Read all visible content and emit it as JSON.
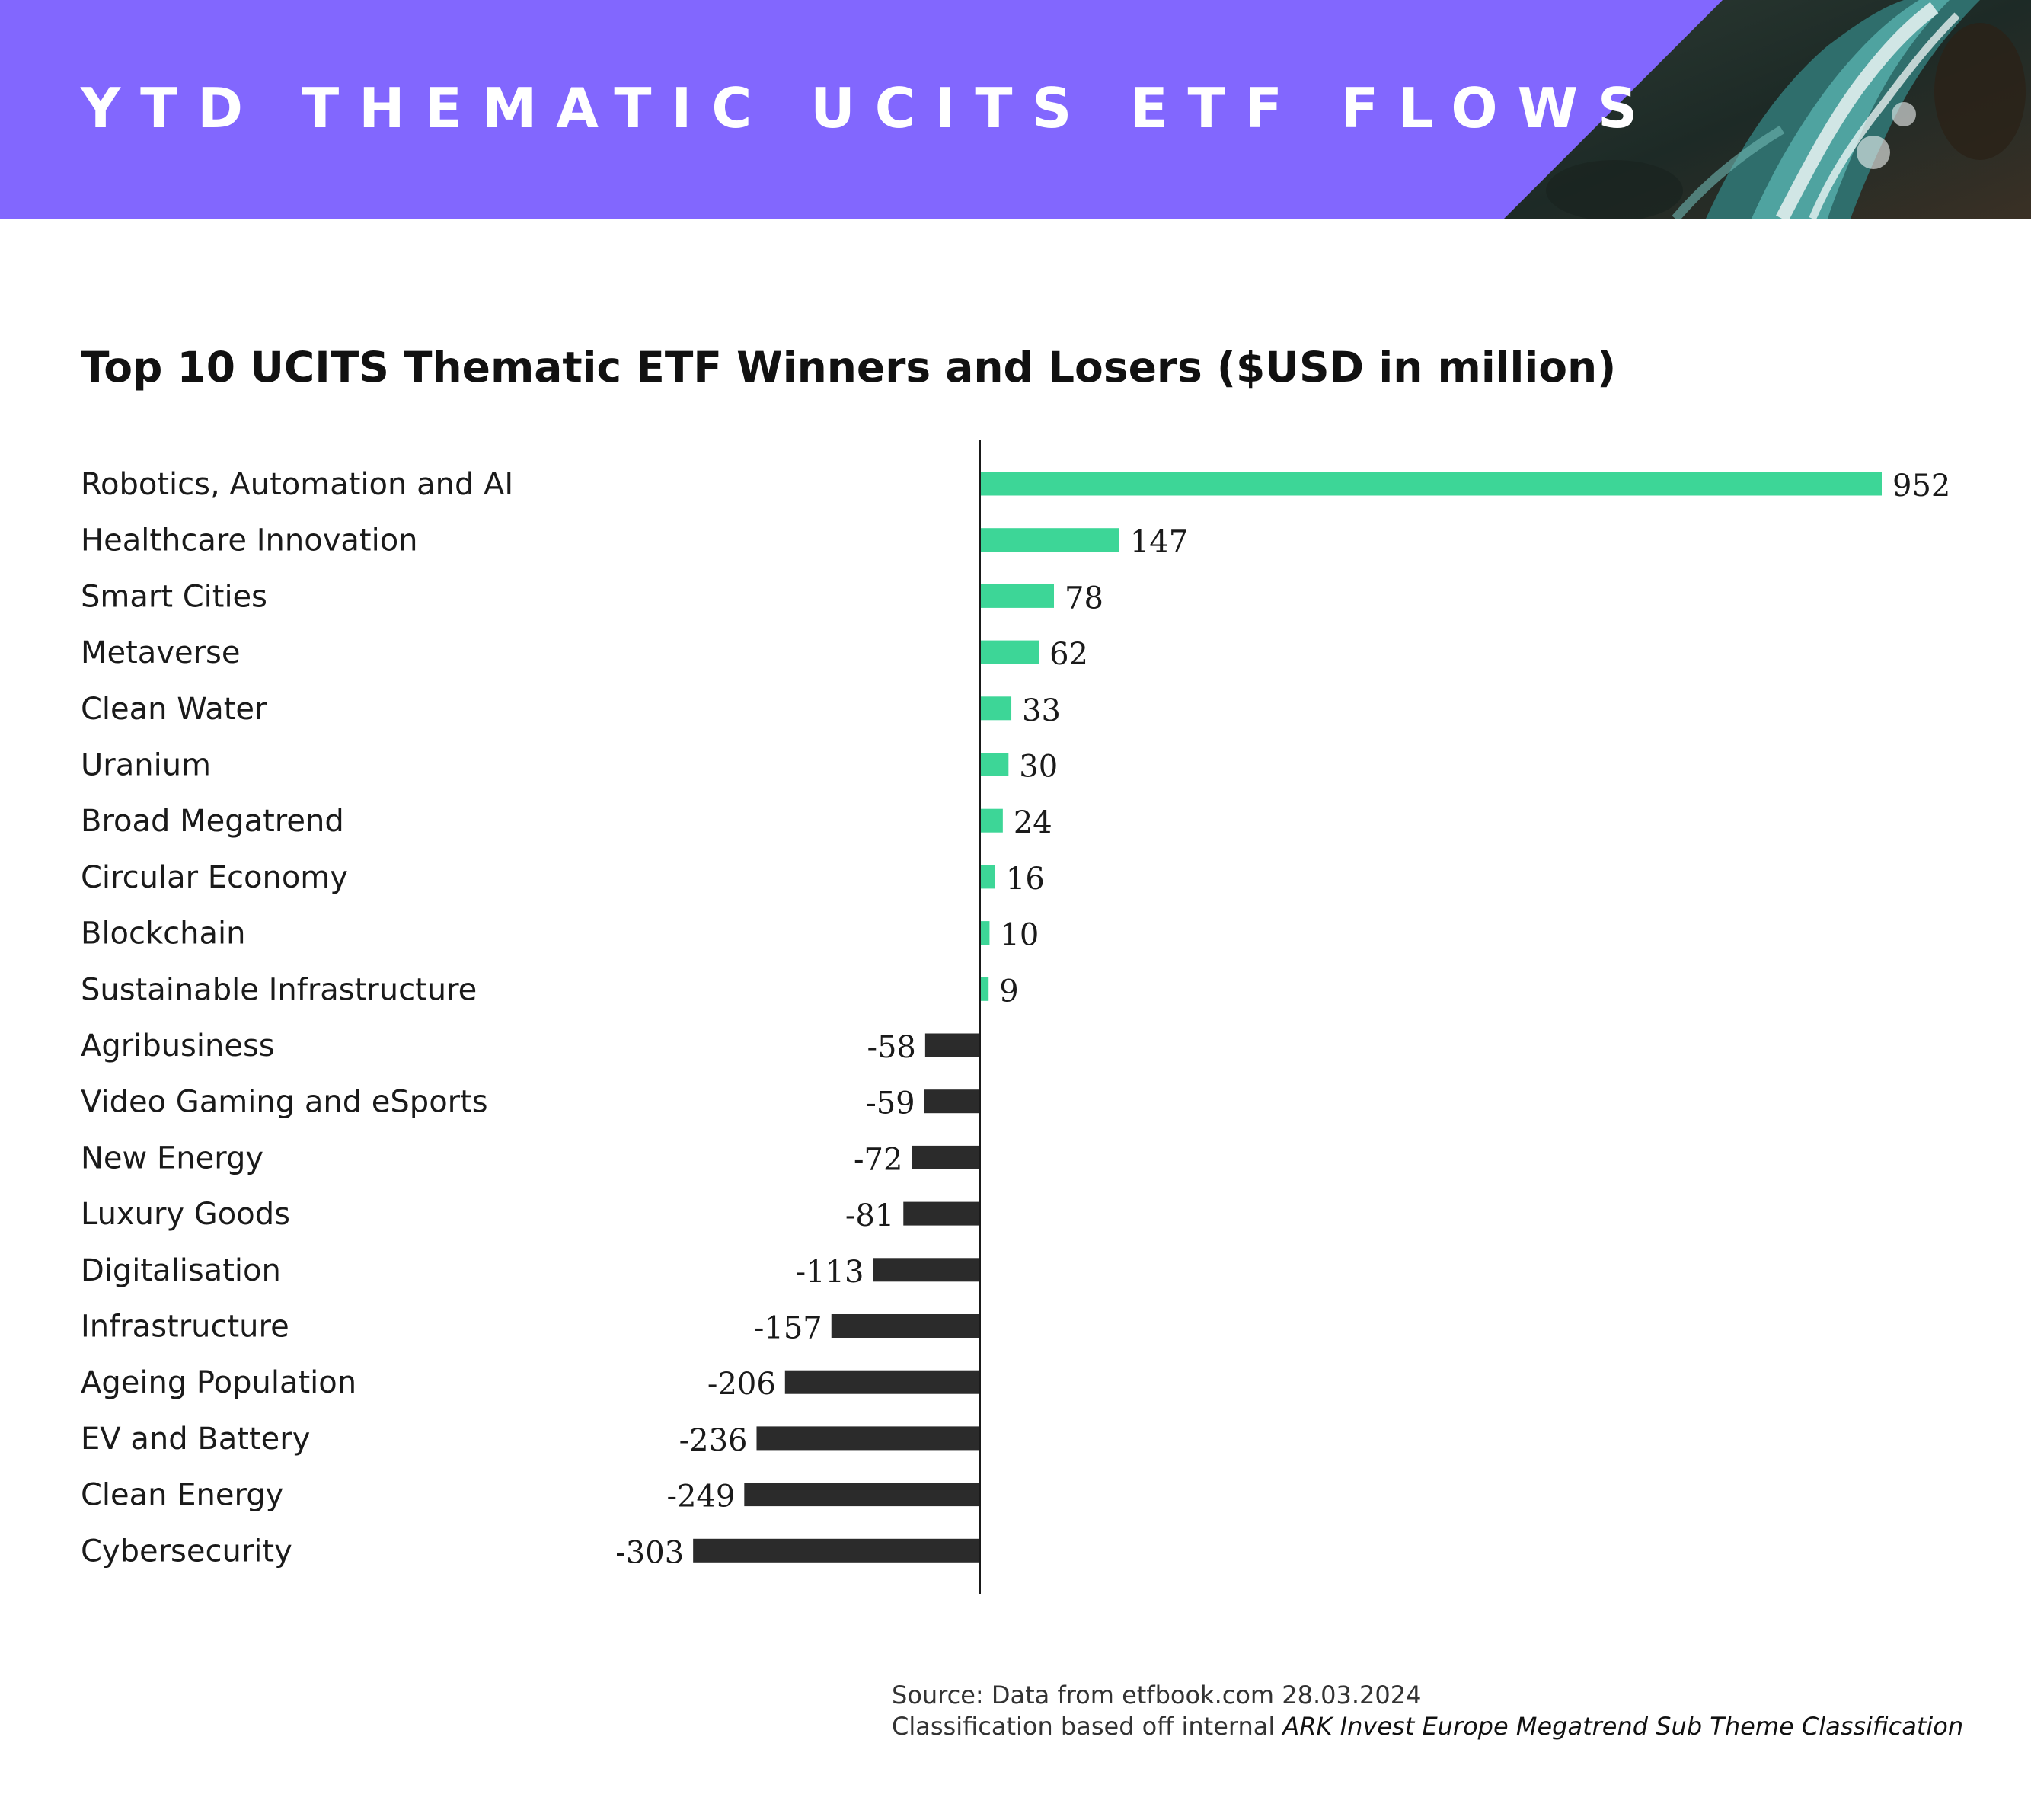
{
  "header": {
    "title": "YTD THEMATIC UCITS ETF FLOWS",
    "photo_icon": "river-waterfall-photo",
    "accent_color": "#8267fe"
  },
  "chart_title": "Top 10 UCITS Thematic ETF Winners and Losers ($USD in million)",
  "chart_data": {
    "type": "bar",
    "orientation": "horizontal",
    "title": "Top 10 UCITS Thematic ETF Winners and Losers ($USD in million)",
    "categories": [
      "Robotics, Automation and AI",
      "Healthcare Innovation",
      "Smart Cities",
      "Metaverse",
      "Clean Water",
      "Uranium",
      "Broad Megatrend",
      "Circular Economy",
      "Blockchain",
      "Sustainable Infrastructure",
      "Agribusiness",
      "Video Gaming and eSports",
      "New Energy",
      "Luxury Goods",
      "Digitalisation",
      "Infrastructure",
      "Ageing Population",
      "EV and Battery",
      "Clean Energy",
      "Cybersecurity"
    ],
    "values": [
      952,
      147,
      78,
      62,
      33,
      30,
      24,
      16,
      10,
      9,
      -58,
      -59,
      -72,
      -81,
      -113,
      -157,
      -206,
      -236,
      -249,
      -303
    ],
    "xlim": [
      -303,
      952
    ],
    "grid": false,
    "legend": "none",
    "positive_color": "#3dd697",
    "negative_color": "#2b2b2b",
    "xlabel": "",
    "ylabel": ""
  },
  "footer": {
    "source": "Source: Data from etfbook.com 28.03.2024",
    "classification_prefix": "Classification based off internal",
    "classification_name": "ARK Invest Europe Megatrend Sub Theme Classification"
  }
}
